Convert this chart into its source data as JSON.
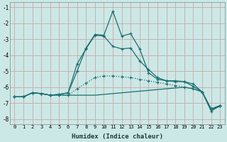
{
  "xlabel": "Humidex (Indice chaleur)",
  "bg_color": "#cce8e6",
  "grid_color": "#c8a8a8",
  "line_color": "#1a7070",
  "xlim": [
    -0.5,
    23.5
  ],
  "ylim": [
    -8.3,
    -0.7
  ],
  "yticks": [
    -8,
    -7,
    -6,
    -5,
    -4,
    -3,
    -2,
    -1
  ],
  "xticks": [
    0,
    1,
    2,
    3,
    4,
    5,
    6,
    7,
    8,
    9,
    10,
    11,
    12,
    13,
    14,
    15,
    16,
    17,
    18,
    19,
    20,
    21,
    22,
    23
  ],
  "line_dotted_x": [
    0,
    1,
    2,
    3,
    4,
    5,
    6,
    7,
    8,
    9,
    10,
    11,
    12,
    13,
    14,
    15,
    16,
    17,
    18,
    19,
    20,
    21,
    22,
    23
  ],
  "line_dotted_y": [
    -6.6,
    -6.6,
    -6.35,
    -6.4,
    -6.5,
    -6.5,
    -6.5,
    -6.1,
    -5.75,
    -5.4,
    -5.3,
    -5.3,
    -5.35,
    -5.4,
    -5.5,
    -5.6,
    -5.7,
    -5.8,
    -5.9,
    -6.0,
    -6.1,
    -6.3,
    -7.35,
    -7.15
  ],
  "line_marked1_x": [
    0,
    1,
    2,
    3,
    4,
    5,
    6,
    7,
    8,
    9,
    10,
    11,
    12,
    13,
    14,
    15,
    16,
    17,
    18,
    19,
    20,
    21,
    22,
    23
  ],
  "line_marked1_y": [
    -6.6,
    -6.6,
    -6.35,
    -6.4,
    -6.5,
    -6.45,
    -6.35,
    -4.55,
    -3.6,
    -2.75,
    -2.8,
    -3.45,
    -3.6,
    -3.55,
    -4.35,
    -4.9,
    -5.4,
    -5.6,
    -5.6,
    -5.65,
    -5.8,
    -6.3,
    -7.35,
    -7.15
  ],
  "line_marked2_x": [
    0,
    1,
    2,
    3,
    4,
    5,
    6,
    7,
    8,
    9,
    10,
    11,
    12,
    13,
    14,
    15,
    16,
    17,
    18,
    19,
    20,
    21,
    22,
    23
  ],
  "line_marked2_y": [
    -6.6,
    -6.6,
    -6.35,
    -6.4,
    -6.5,
    -6.45,
    -6.35,
    -5.0,
    -3.55,
    -2.7,
    -2.75,
    -1.25,
    -2.8,
    -2.65,
    -3.6,
    -5.1,
    -5.5,
    -5.6,
    -5.65,
    -5.65,
    -5.95,
    -6.3,
    -7.5,
    -7.15
  ],
  "line_flat_x": [
    0,
    1,
    2,
    3,
    4,
    5,
    6,
    7,
    8,
    9,
    10,
    11,
    12,
    13,
    14,
    15,
    16,
    17,
    18,
    19,
    20,
    21,
    22,
    23
  ],
  "line_flat_y": [
    -6.6,
    -6.6,
    -6.35,
    -6.4,
    -6.5,
    -6.5,
    -6.5,
    -6.5,
    -6.5,
    -6.5,
    -6.45,
    -6.4,
    -6.35,
    -6.3,
    -6.25,
    -6.2,
    -6.15,
    -6.1,
    -6.05,
    -6.0,
    -6.1,
    -6.3,
    -7.4,
    -7.2
  ]
}
